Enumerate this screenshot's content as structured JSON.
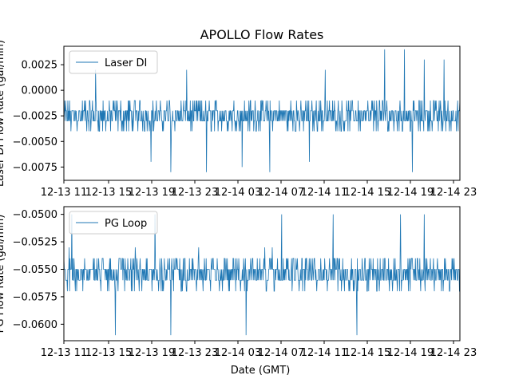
{
  "chart_data": {
    "type": "line",
    "title": "APOLLO Flow Rates",
    "xlabel": "Date (GMT)",
    "x_tick_labels": [
      "12-13 11",
      "12-13 15",
      "12-13 19",
      "12-13 23",
      "12-14 03",
      "12-14 07",
      "12-14 11",
      "12-14 15",
      "12-14 19",
      "12-14 23"
    ],
    "line_color": "#1f77b4",
    "panels": [
      {
        "series_name": "Laser DI",
        "ylabel": "Laser DI Flow Rate (gal/min)",
        "ylim": [
          -0.0088,
          0.0043
        ],
        "y_ticks": [
          0.0025,
          0.0,
          -0.0025,
          -0.005,
          -0.0075
        ],
        "y_tick_labels": [
          "0.0025",
          "0.0000",
          "−0.0025",
          "−0.0050",
          "−0.0075"
        ],
        "legend": "upper left",
        "baseline": -0.0025,
        "noise": 0.0011,
        "quantum": 0.001,
        "spikes": [
          {
            "t": 0.08,
            "v": 0.002
          },
          {
            "t": 0.22,
            "v": -0.007
          },
          {
            "t": 0.27,
            "v": -0.008
          },
          {
            "t": 0.31,
            "v": 0.002
          },
          {
            "t": 0.36,
            "v": -0.008
          },
          {
            "t": 0.45,
            "v": -0.0075
          },
          {
            "t": 0.52,
            "v": -0.008
          },
          {
            "t": 0.62,
            "v": -0.007
          },
          {
            "t": 0.66,
            "v": 0.002
          },
          {
            "t": 0.81,
            "v": 0.004
          },
          {
            "t": 0.86,
            "v": 0.004
          },
          {
            "t": 0.88,
            "v": -0.008
          },
          {
            "t": 0.91,
            "v": 0.003
          },
          {
            "t": 0.96,
            "v": 0.003
          }
        ]
      },
      {
        "series_name": "PG Loop",
        "ylabel": "PG Flow Rate (gal/min)",
        "ylim": [
          -0.0615,
          -0.0493
        ],
        "y_ticks": [
          -0.05,
          -0.0525,
          -0.055,
          -0.0575,
          -0.06
        ],
        "y_tick_labels": [
          "−0.0500",
          "−0.0525",
          "−0.0550",
          "−0.0575",
          "−0.0600"
        ],
        "legend": "upper left",
        "baseline": -0.0553,
        "noise": 0.0011,
        "quantum": 0.001,
        "spikes": [
          {
            "t": 0.02,
            "v": -0.05
          },
          {
            "t": 0.13,
            "v": -0.061
          },
          {
            "t": 0.23,
            "v": -0.05
          },
          {
            "t": 0.27,
            "v": -0.061
          },
          {
            "t": 0.46,
            "v": -0.061
          },
          {
            "t": 0.55,
            "v": -0.05
          },
          {
            "t": 0.68,
            "v": -0.05
          },
          {
            "t": 0.74,
            "v": -0.061
          },
          {
            "t": 0.85,
            "v": -0.05
          },
          {
            "t": 0.91,
            "v": -0.05
          }
        ]
      }
    ]
  }
}
